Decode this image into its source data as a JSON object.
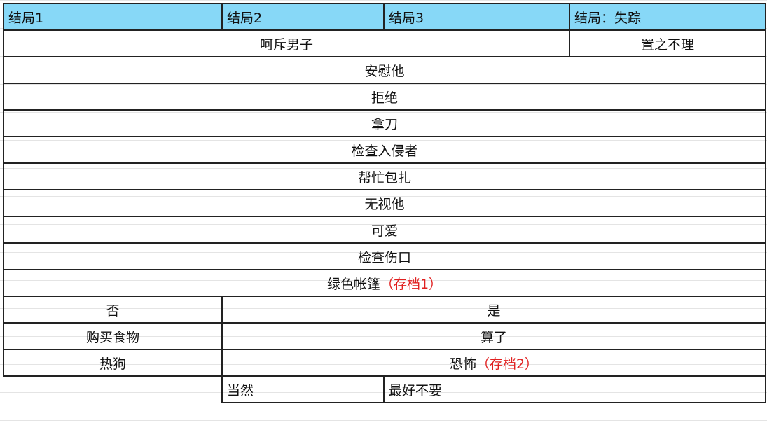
{
  "header": [
    "结局1",
    "结局2",
    "结局3",
    "结局：失踪"
  ],
  "row_scold": {
    "left": "呵斥男子",
    "right": "置之不理"
  },
  "full_rows": [
    "安慰他",
    "拒绝",
    "拿刀",
    "检查入侵者",
    "帮忙包扎",
    "无视他",
    "可爱",
    "检查伤口"
  ],
  "green_tent": {
    "text": "绿色帐篷",
    "save": "（存档1）"
  },
  "split_rows": [
    {
      "left": "否",
      "right": "是"
    },
    {
      "left": "购买食物",
      "right": "算了"
    },
    {
      "left": "热狗",
      "right": "恐怖",
      "save": "（存档2）"
    }
  ],
  "last_row": {
    "a": "当然",
    "b": "最好不要"
  },
  "colors": {
    "header_bg": "#87d8f7",
    "save_text": "#e02020"
  }
}
